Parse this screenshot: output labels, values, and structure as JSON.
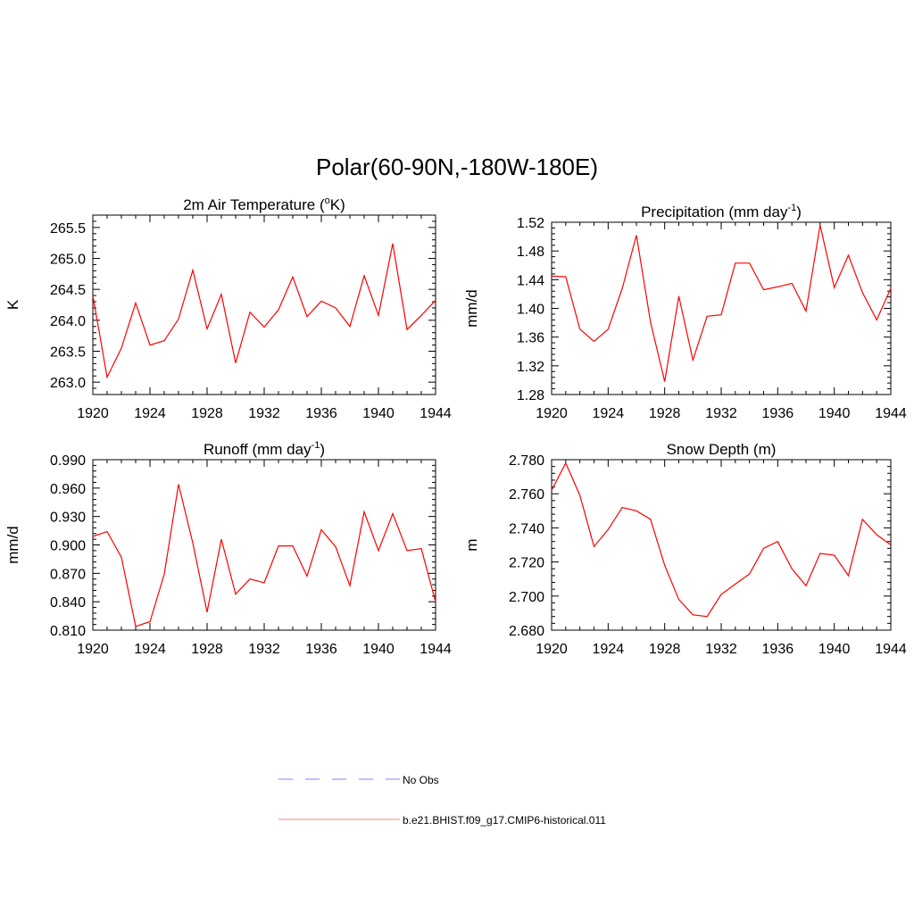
{
  "figure": {
    "title": "Polar(60-90N,-180W-180E)"
  },
  "legend": {
    "entries": [
      {
        "label": "No Obs",
        "color": "#9999ff",
        "dash": true
      },
      {
        "label": "b.e21.BHIST.f09_g17.CMIP6-historical.011",
        "color": "#ff9999",
        "dash": false
      }
    ]
  },
  "chart_data": [
    {
      "type": "line",
      "title": "2m Air Temperature (",
      "title_sup": "o",
      "title_after": "K)",
      "ylabel": "K",
      "xlim": [
        1920,
        1944
      ],
      "ylim": [
        262.8,
        265.7
      ],
      "yticks": [
        263.0,
        263.5,
        264.0,
        264.5,
        265.0,
        265.5
      ],
      "ytick_labels": [
        "263.0",
        "263.5",
        "264.0",
        "264.5",
        "265.0",
        "265.5"
      ],
      "xticks": [
        1920,
        1924,
        1928,
        1932,
        1936,
        1940,
        1944
      ],
      "xtick_labels": [
        "1920",
        "1924",
        "1928",
        "1932",
        "1936",
        "1940",
        "1944"
      ],
      "series": [
        {
          "color": "#ff0000",
          "x": [
            1920,
            1921,
            1922,
            1923,
            1924,
            1925,
            1926,
            1927,
            1928,
            1929,
            1930,
            1931,
            1932,
            1933,
            1934,
            1935,
            1936,
            1937,
            1938,
            1939,
            1940,
            1941,
            1942,
            1943,
            1944
          ],
          "values": [
            264.4,
            263.08,
            263.55,
            264.28,
            263.6,
            263.67,
            264.02,
            264.81,
            263.86,
            264.42,
            263.31,
            264.13,
            263.89,
            264.17,
            264.7,
            264.06,
            264.31,
            264.2,
            263.9,
            264.72,
            264.08,
            265.24,
            263.85,
            264.08,
            264.32
          ]
        }
      ]
    },
    {
      "type": "line",
      "title": "Precipitation (mm day",
      "title_sup": "-1",
      "title_after": ")",
      "ylabel": "mm/d",
      "xlim": [
        1920,
        1944
      ],
      "ylim": [
        1.28,
        1.52
      ],
      "yticks": [
        1.28,
        1.32,
        1.36,
        1.4,
        1.44,
        1.48,
        1.52
      ],
      "ytick_labels": [
        "1.28",
        "1.32",
        "1.36",
        "1.40",
        "1.44",
        "1.48",
        "1.52"
      ],
      "xticks": [
        1920,
        1924,
        1928,
        1932,
        1936,
        1940,
        1944
      ],
      "xtick_labels": [
        "1920",
        "1924",
        "1928",
        "1932",
        "1936",
        "1940",
        "1944"
      ],
      "series": [
        {
          "color": "#ff0000",
          "x": [
            1920,
            1921,
            1922,
            1923,
            1924,
            1925,
            1926,
            1927,
            1928,
            1929,
            1930,
            1931,
            1932,
            1933,
            1934,
            1935,
            1936,
            1937,
            1938,
            1939,
            1940,
            1941,
            1942,
            1943,
            1944
          ],
          "values": [
            1.445,
            1.444,
            1.371,
            1.354,
            1.371,
            1.428,
            1.502,
            1.381,
            1.298,
            1.417,
            1.328,
            1.389,
            1.391,
            1.463,
            1.463,
            1.426,
            1.43,
            1.435,
            1.396,
            1.516,
            1.429,
            1.474,
            1.422,
            1.384,
            1.428
          ]
        }
      ]
    },
    {
      "type": "line",
      "title": "Runoff (mm day",
      "title_sup": "-1",
      "title_after": ")",
      "ylabel": "mm/d",
      "xlim": [
        1920,
        1944
      ],
      "ylim": [
        0.81,
        0.99
      ],
      "yticks": [
        0.81,
        0.84,
        0.87,
        0.9,
        0.93,
        0.96,
        0.99
      ],
      "ytick_labels": [
        "0.810",
        "0.840",
        "0.870",
        "0.900",
        "0.930",
        "0.960",
        "0.990"
      ],
      "xticks": [
        1920,
        1924,
        1928,
        1932,
        1936,
        1940,
        1944
      ],
      "xtick_labels": [
        "1920",
        "1924",
        "1928",
        "1932",
        "1936",
        "1940",
        "1944"
      ],
      "series": [
        {
          "color": "#ff0000",
          "x": [
            1920,
            1921,
            1922,
            1923,
            1924,
            1925,
            1926,
            1927,
            1928,
            1929,
            1930,
            1931,
            1932,
            1933,
            1934,
            1935,
            1936,
            1937,
            1938,
            1939,
            1940,
            1941,
            1942,
            1943,
            1944
          ],
          "values": [
            0.909,
            0.914,
            0.887,
            0.814,
            0.819,
            0.869,
            0.964,
            0.902,
            0.829,
            0.906,
            0.848,
            0.864,
            0.86,
            0.899,
            0.899,
            0.867,
            0.916,
            0.898,
            0.857,
            0.935,
            0.894,
            0.933,
            0.894,
            0.896,
            0.84
          ]
        }
      ]
    },
    {
      "type": "line",
      "title": "Snow Depth (m)",
      "title_sup": "",
      "title_after": "",
      "ylabel": "m",
      "xlim": [
        1920,
        1944
      ],
      "ylim": [
        2.68,
        2.78
      ],
      "yticks": [
        2.68,
        2.7,
        2.72,
        2.74,
        2.76,
        2.78
      ],
      "ytick_labels": [
        "2.680",
        "2.700",
        "2.720",
        "2.740",
        "2.760",
        "2.780"
      ],
      "xticks": [
        1920,
        1924,
        1928,
        1932,
        1936,
        1940,
        1944
      ],
      "xtick_labels": [
        "1920",
        "1924",
        "1928",
        "1932",
        "1936",
        "1940",
        "1944"
      ],
      "series": [
        {
          "color": "#ff0000",
          "x": [
            1920,
            1921,
            1922,
            1923,
            1924,
            1925,
            1926,
            1927,
            1928,
            1929,
            1930,
            1931,
            1932,
            1933,
            1934,
            1935,
            1936,
            1937,
            1938,
            1939,
            1940,
            1941,
            1942,
            1943,
            1944
          ],
          "values": [
            2.762,
            2.778,
            2.759,
            2.729,
            2.739,
            2.752,
            2.75,
            2.745,
            2.718,
            2.698,
            2.689,
            2.688,
            2.701,
            2.707,
            2.713,
            2.728,
            2.732,
            2.716,
            2.706,
            2.725,
            2.724,
            2.712,
            2.745,
            2.736,
            2.73
          ]
        }
      ]
    }
  ]
}
